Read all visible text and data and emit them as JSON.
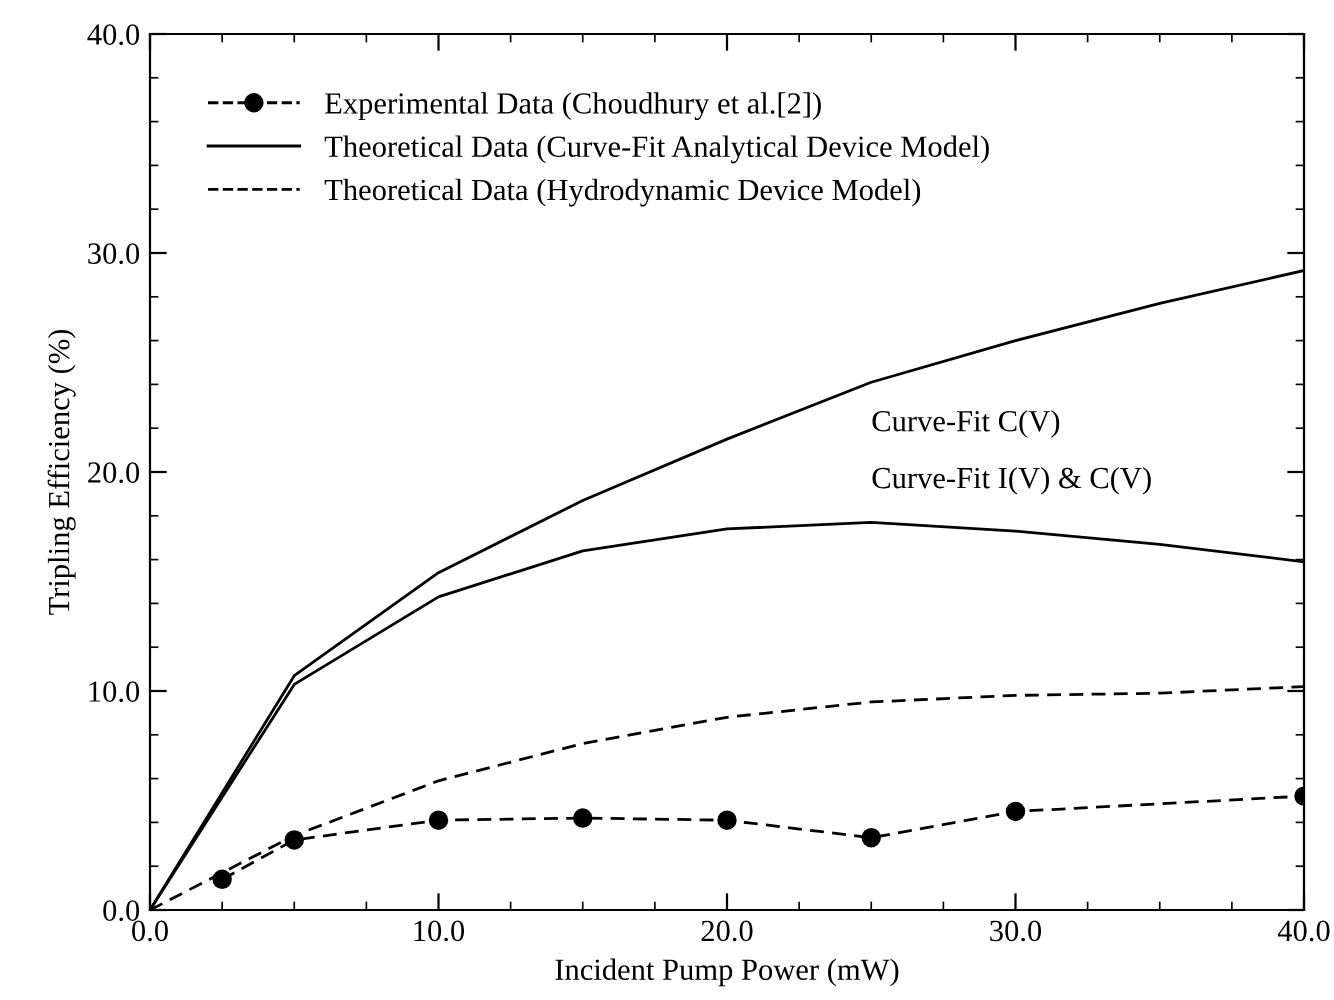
{
  "chart_data": {
    "type": "line",
    "xlabel": "Incident Pump Power (mW)",
    "ylabel": "Tripling Efficiency (%)",
    "xlim": [
      0.0,
      40.0
    ],
    "ylim": [
      0.0,
      40.0
    ],
    "xticks": [
      {
        "value": 0,
        "label": "0.0"
      },
      {
        "value": 10,
        "label": "10.0"
      },
      {
        "value": 20,
        "label": "20.0"
      },
      {
        "value": 30,
        "label": "30.0"
      },
      {
        "value": 40,
        "label": "40.0"
      }
    ],
    "yticks": [
      {
        "value": 0,
        "label": "0.0"
      },
      {
        "value": 10,
        "label": "10.0"
      },
      {
        "value": 20,
        "label": "20.0"
      },
      {
        "value": 30,
        "label": "30.0"
      },
      {
        "value": 40,
        "label": "40.0"
      }
    ],
    "grid": false,
    "legend": "top left",
    "series": [
      {
        "name": "Experimental Data (Choudhury et al.[2])",
        "color": "#000000",
        "marker": "circle",
        "line_style": "dashed",
        "x": [
          2.5,
          5,
          10,
          15,
          20,
          25,
          30,
          40
        ],
        "values": [
          1.4,
          3.2,
          4.1,
          4.2,
          4.1,
          3.3,
          4.5,
          5.2
        ]
      },
      {
        "name": "Theoretical Data (Curve-Fit Analytical Device Model)",
        "color": "#000000",
        "marker": "none",
        "line_style": "solid",
        "x": [
          0,
          5,
          10,
          15,
          20,
          25,
          30,
          35,
          40
        ],
        "values": [
          0,
          10.7,
          15.4,
          18.7,
          21.5,
          24.1,
          26.0,
          27.7,
          29.2
        ]
      },
      {
        "color": "#000000",
        "marker": "none",
        "line_style": "solid",
        "x": [
          0,
          5,
          10,
          15,
          20,
          25,
          30,
          35,
          40
        ],
        "values": [
          0,
          10.3,
          14.3,
          16.4,
          17.4,
          17.7,
          17.3,
          16.7,
          15.9
        ]
      },
      {
        "name": "Theoretical Data (Hydrodynamic Device Model)",
        "color": "#000000",
        "marker": "none",
        "line_style": "dashed",
        "x": [
          0,
          5,
          10,
          15,
          20,
          25,
          30,
          35,
          40
        ],
        "values": [
          0,
          3.4,
          5.9,
          7.6,
          8.8,
          9.5,
          9.8,
          9.9,
          10.2
        ]
      }
    ],
    "annotations": [
      {
        "text": "Curve-Fit C(V)",
        "x": 25,
        "y": 24.1
      },
      {
        "text": "Curve-Fit I(V) & C(V)",
        "x": 25,
        "y": 17.7
      }
    ]
  }
}
